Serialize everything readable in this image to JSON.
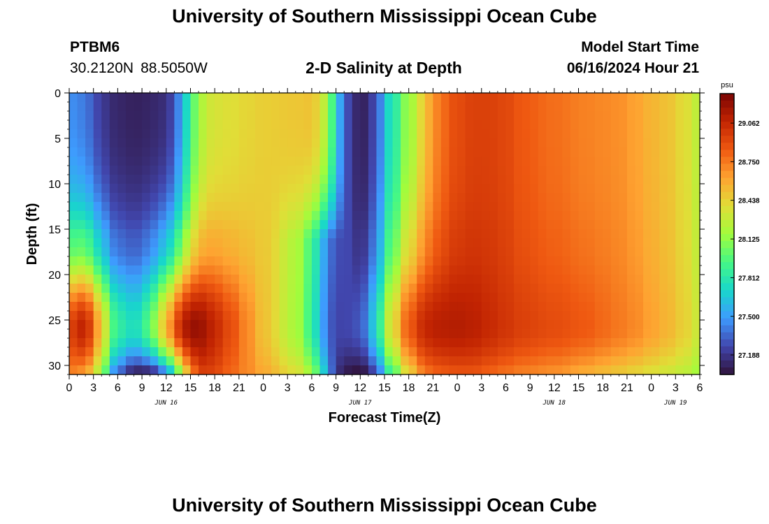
{
  "header": {
    "title": "University of Southern Mississippi Ocean Cube",
    "station": "PTBM6",
    "lat": "30.2120N",
    "lon": "88.5050W",
    "subtitle": "2-D Salinity at Depth",
    "model_start_label": "Model Start Time",
    "model_start_value": "06/16/2024 Hour 21"
  },
  "footer": {
    "title": "University of Southern Mississippi Ocean Cube"
  },
  "chart_data": {
    "type": "heatmap",
    "title": "2-D Salinity at Depth",
    "xlabel": "Forecast Time(Z)",
    "ylabel": "Depth (ft)",
    "x_tick_labels": [
      "0",
      "3",
      "6",
      "9",
      "12",
      "15",
      "18",
      "21",
      "0",
      "3",
      "6",
      "9",
      "12",
      "15",
      "18",
      "21",
      "0",
      "3",
      "6",
      "9",
      "12",
      "15",
      "18",
      "21",
      "0",
      "3",
      "6"
    ],
    "x_day_labels": [
      {
        "label": "JUN 16",
        "tick_index": 4
      },
      {
        "label": "JUN 17",
        "tick_index": 12
      },
      {
        "label": "JUN 18",
        "tick_index": 20
      },
      {
        "label": "JUN 19",
        "tick_index": 25
      }
    ],
    "xlim_hours": [
      0,
      78
    ],
    "y_ticks": [
      0,
      5,
      10,
      15,
      20,
      25,
      30
    ],
    "ylim": [
      0,
      31
    ],
    "y_inverted": true,
    "colorbar": {
      "unit": "psu",
      "ticks": [
        29.062,
        28.75,
        28.438,
        28.125,
        27.812,
        27.5,
        27.188
      ],
      "range": [
        27.03,
        29.3
      ],
      "colormap": [
        "#30123b",
        "#4146ad",
        "#3e9bfe",
        "#18d7cb",
        "#46f884",
        "#a2fc3c",
        "#e1dd37",
        "#fea331",
        "#ef5911",
        "#c22402",
        "#7a0403"
      ]
    },
    "grid": false,
    "description_rows": "z values in psu; rows = depth nodes 0..31 ft (step 1), cols = forecast hours 0..78 (step 1). Values generated by the script from the field structure below.",
    "field": {
      "anchor_hours": [
        0,
        2,
        3,
        4,
        6,
        8,
        9,
        10,
        12,
        13,
        14,
        15,
        16,
        17,
        18,
        20,
        22,
        24,
        28,
        30,
        31,
        32,
        33,
        34,
        36,
        37,
        38,
        40,
        42,
        44,
        45,
        48,
        50,
        52,
        54,
        56,
        60,
        64,
        66,
        68,
        70,
        72,
        74,
        76,
        78
      ],
      "surface": [
        27.45,
        27.4,
        27.3,
        27.2,
        27.12,
        27.1,
        27.1,
        27.12,
        27.15,
        27.3,
        27.55,
        27.9,
        28.15,
        28.3,
        28.35,
        28.38,
        28.42,
        28.45,
        28.48,
        28.5,
        28.4,
        28.15,
        27.75,
        27.3,
        27.1,
        27.12,
        27.35,
        27.8,
        28.15,
        28.45,
        28.7,
        28.9,
        28.95,
        28.95,
        28.92,
        28.85,
        28.78,
        28.72,
        28.7,
        28.68,
        28.62,
        28.55,
        28.5,
        28.4,
        28.25
      ],
      "deep": [
        28.95,
        29.1,
        28.85,
        28.4,
        27.85,
        27.75,
        27.8,
        28.05,
        28.5,
        28.85,
        29.1,
        29.2,
        29.22,
        29.15,
        29.05,
        28.9,
        28.7,
        28.5,
        28.2,
        27.9,
        27.6,
        27.35,
        27.25,
        27.25,
        27.3,
        27.45,
        27.8,
        28.4,
        28.85,
        29.05,
        29.1,
        29.12,
        29.1,
        29.05,
        29.0,
        28.95,
        28.9,
        28.85,
        28.8,
        28.75,
        28.7,
        28.62,
        28.55,
        28.45,
        28.3
      ],
      "bottom": [
        28.7,
        28.6,
        28.4,
        28.05,
        27.3,
        27.05,
        27.0,
        27.05,
        27.3,
        27.7,
        28.2,
        28.6,
        28.9,
        28.95,
        28.9,
        28.8,
        28.7,
        28.6,
        28.4,
        28.2,
        27.9,
        27.5,
        27.2,
        27.05,
        27.0,
        27.05,
        27.3,
        27.9,
        28.4,
        28.7,
        28.8,
        28.85,
        28.85,
        28.8,
        28.75,
        28.7,
        28.65,
        28.55,
        28.5,
        28.45,
        28.4,
        28.35,
        28.3,
        28.25,
        28.15
      ],
      "mix_depth_ft": 16,
      "deep_core_ft": 26
    }
  }
}
